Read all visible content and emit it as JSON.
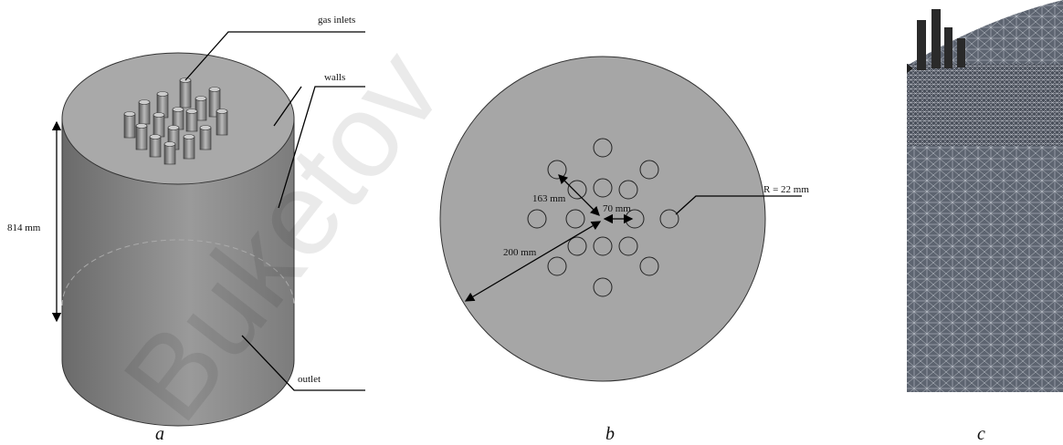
{
  "panel_a": {
    "gas_inlets": "gas inlets",
    "walls": "walls",
    "height": "814 mm",
    "outlet": "outlet",
    "caption": "a"
  },
  "panel_b": {
    "pitch_outer": "163 mm",
    "pitch_inner": "70 mm",
    "radius": "200 mm",
    "hole_radius": "R = 22 mm",
    "caption": "b"
  },
  "panel_c": {
    "caption": "c"
  },
  "watermark": "Buketov"
}
